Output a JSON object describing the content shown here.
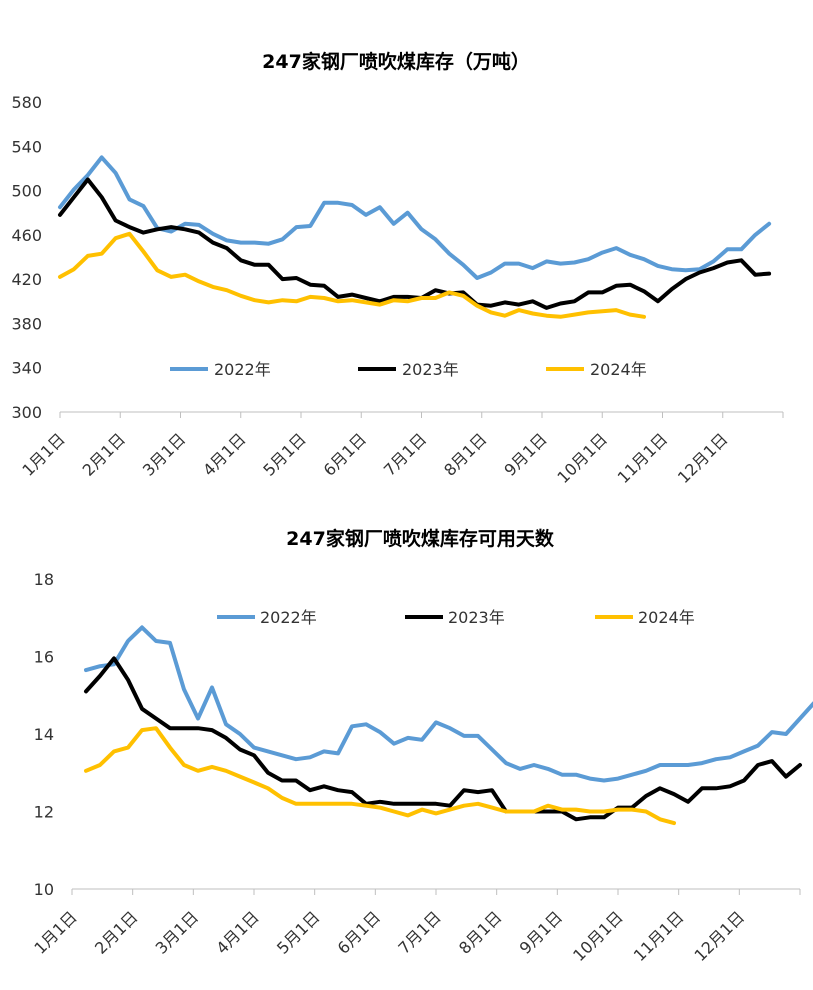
{
  "colors": {
    "2022": "#5B9BD5",
    "2023": "#000000",
    "2024": "#FFC000"
  },
  "chart_data": [
    {
      "type": "line",
      "title": "247家钢厂喷吹煤库存（万吨）",
      "xlabel": "",
      "ylabel": "",
      "ylim": [
        300,
        580
      ],
      "yticks": [
        "300",
        "340",
        "380",
        "420",
        "460",
        "500",
        "540",
        "580"
      ],
      "x_tick_labels": [
        "1月1日",
        "2月1日",
        "3月1日",
        "4月1日",
        "5月1日",
        "6月1日",
        "7月1日",
        "8月1日",
        "9月1日",
        "10月1日",
        "11月1日",
        "12月1日"
      ],
      "legend": "top-center",
      "week_start": 0,
      "series": [
        {
          "name": "2022年",
          "color_key": "2022",
          "values": [
            485,
            501,
            514,
            530,
            516,
            492,
            486,
            466,
            463,
            470,
            469,
            461,
            455,
            453,
            453,
            452,
            456,
            467,
            468,
            489,
            489,
            487,
            478,
            485,
            470,
            480,
            465,
            456,
            443,
            433,
            421,
            426,
            434,
            434,
            430,
            436,
            434,
            435,
            438,
            444,
            448,
            442,
            438,
            432,
            429,
            428,
            429,
            436,
            447,
            447,
            460,
            470
          ]
        },
        {
          "name": "2023年",
          "color_key": "2023",
          "values": [
            478,
            494,
            510,
            494,
            473,
            467,
            462,
            465,
            467,
            465,
            462,
            453,
            448,
            437,
            433,
            433,
            420,
            421,
            415,
            414,
            404,
            406,
            403,
            400,
            404,
            404,
            403,
            410,
            407,
            408,
            397,
            396,
            399,
            397,
            400,
            394,
            398,
            400,
            408,
            408,
            414,
            415,
            409,
            400,
            411,
            420,
            426,
            430,
            435,
            437,
            424,
            425
          ]
        },
        {
          "name": "2024年",
          "color_key": "2024",
          "values": [
            422,
            429,
            441,
            443,
            457,
            461,
            445,
            428,
            422,
            424,
            418,
            413,
            410,
            405,
            401,
            399,
            401,
            400,
            404,
            403,
            400,
            401,
            399,
            397,
            401,
            400,
            403,
            403,
            408,
            405,
            396,
            390,
            387,
            392,
            389,
            387,
            386,
            388,
            390,
            391,
            392,
            388,
            386
          ]
        }
      ]
    },
    {
      "type": "line",
      "title": "247家钢厂喷吹煤库存可用天数",
      "xlabel": "",
      "ylabel": "",
      "ylim": [
        10,
        18
      ],
      "yticks": [
        "10",
        "12",
        "14",
        "16",
        "18"
      ],
      "x_tick_labels": [
        "1月1日",
        "2月1日",
        "3月1日",
        "4月1日",
        "5月1日",
        "6月1日",
        "7月1日",
        "8月1日",
        "9月1日",
        "10月1日",
        "11月1日",
        "12月1日"
      ],
      "legend": "top-center",
      "week_start": 1,
      "series": [
        {
          "name": "2022年",
          "color_key": "2022",
          "values": [
            15.65,
            15.75,
            15.8,
            16.4,
            16.75,
            16.4,
            16.35,
            15.15,
            14.4,
            15.2,
            14.25,
            14.0,
            13.65,
            13.55,
            13.45,
            13.35,
            13.4,
            13.55,
            13.5,
            14.2,
            14.25,
            14.05,
            13.75,
            13.9,
            13.85,
            14.3,
            14.15,
            13.95,
            13.95,
            13.6,
            13.25,
            13.1,
            13.2,
            13.1,
            12.95,
            12.95,
            12.85,
            12.8,
            12.85,
            12.95,
            13.05,
            13.2,
            13.2,
            13.2,
            13.25,
            13.35,
            13.4,
            13.55,
            13.7,
            14.05,
            14.0,
            14.4,
            14.8
          ]
        },
        {
          "name": "2023年",
          "color_key": "2023",
          "values": [
            15.1,
            15.5,
            15.95,
            15.4,
            14.65,
            14.4,
            14.15,
            14.15,
            14.15,
            14.1,
            13.9,
            13.6,
            13.45,
            13.0,
            12.8,
            12.8,
            12.55,
            12.65,
            12.55,
            12.5,
            12.2,
            12.25,
            12.2,
            12.2,
            12.2,
            12.2,
            12.15,
            12.55,
            12.5,
            12.55,
            12.0,
            12.0,
            12.0,
            12.0,
            12.0,
            11.8,
            11.85,
            11.85,
            12.1,
            12.1,
            12.4,
            12.6,
            12.45,
            12.25,
            12.6,
            12.6,
            12.65,
            12.8,
            13.2,
            13.3,
            12.9,
            13.2
          ]
        },
        {
          "name": "2024年",
          "color_key": "2024",
          "values": [
            13.05,
            13.2,
            13.55,
            13.65,
            14.1,
            14.15,
            13.65,
            13.2,
            13.05,
            13.15,
            13.05,
            12.9,
            12.75,
            12.6,
            12.35,
            12.2,
            12.2,
            12.2,
            12.2,
            12.2,
            12.15,
            12.1,
            12.0,
            11.9,
            12.05,
            11.95,
            12.05,
            12.15,
            12.2,
            12.1,
            12.0,
            12.0,
            12.0,
            12.15,
            12.05,
            12.05,
            12.0,
            12.0,
            12.05,
            12.05,
            12.0,
            11.8,
            11.7
          ]
        }
      ]
    }
  ]
}
